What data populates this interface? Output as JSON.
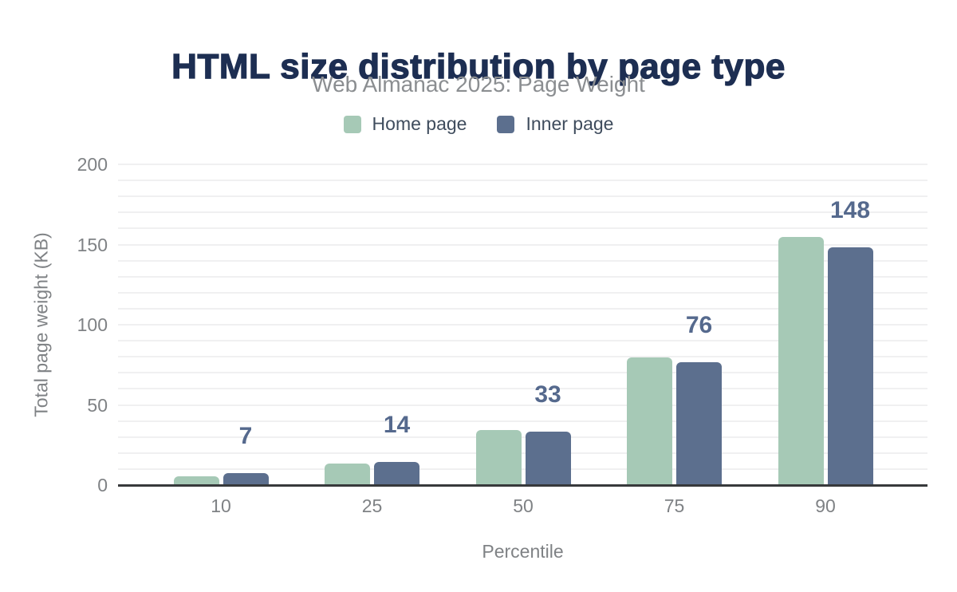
{
  "title": "HTML size distribution by page type",
  "subtitle": "Web Almanac 2025: Page Weight",
  "legend": [
    {
      "label": "Home page",
      "color_key": "home"
    },
    {
      "label": "Inner page",
      "color_key": "inner"
    }
  ],
  "colors": {
    "home": "#a6c9b6",
    "inner": "#5c6f8e",
    "title_text": "#1d2e52",
    "subtitle_text": "#8b8e91",
    "axis_text": "#7f8285",
    "legend_text": "#3f4c5d",
    "value_label_text": "#55698d",
    "gridline": "#f0f0f1",
    "axis_line": "#37393b",
    "background": "#ffffff"
  },
  "chart_data": {
    "type": "bar",
    "title": "HTML size distribution by page type",
    "subtitle": "Web Almanac 2025: Page Weight",
    "categories": [
      "10",
      "25",
      "50",
      "75",
      "90"
    ],
    "xlabel": "Percentile",
    "ylabel": "Total page weight (KB)",
    "ylim": [
      0,
      200
    ],
    "yticks": [
      0,
      50,
      100,
      150,
      200
    ],
    "gridline_step": 10,
    "grid": true,
    "legend_position": "top",
    "series": [
      {
        "name": "Home page",
        "color_key": "home",
        "values": [
          5,
          13,
          34,
          79,
          154
        ]
      },
      {
        "name": "Inner page",
        "color_key": "inner",
        "values": [
          7,
          14,
          33,
          76,
          148
        ]
      }
    ],
    "value_labels_series": "Inner page",
    "value_labels": [
      7,
      14,
      33,
      76,
      148
    ]
  }
}
